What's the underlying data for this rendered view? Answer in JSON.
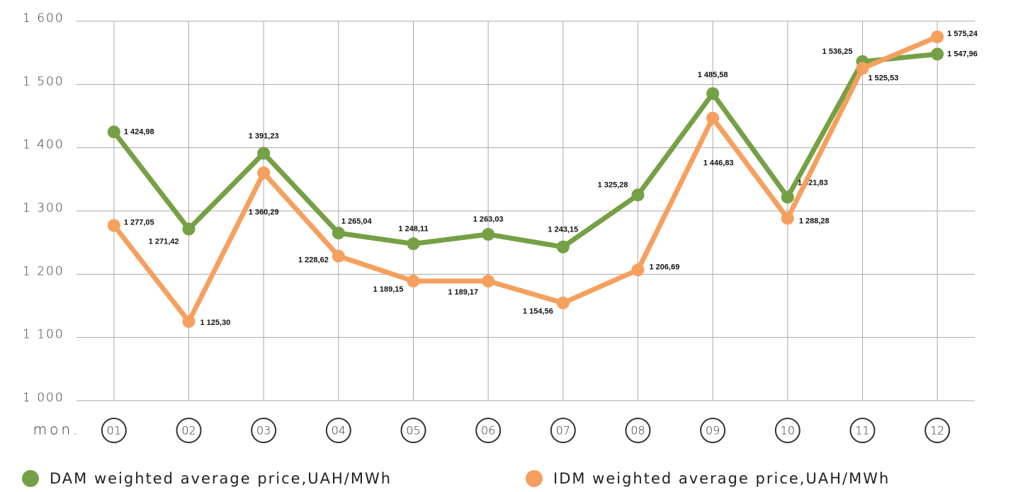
{
  "chart_data": {
    "type": "line",
    "x_label": "mon.",
    "categories": [
      "01",
      "02",
      "03",
      "04",
      "05",
      "06",
      "07",
      "08",
      "09",
      "10",
      "11",
      "12"
    ],
    "series": [
      {
        "name": "DAM weighted average price,UAH/MWh",
        "color": "#76a045",
        "values": [
          1424.98,
          1271.42,
          1391.23,
          1265.04,
          1248.11,
          1263.03,
          1243.15,
          1325.28,
          1485.58,
          1321.83,
          1536.25,
          1547.96
        ],
        "value_labels": [
          "1 424,98",
          "1 271,42",
          "1 391,23",
          "1 265,04",
          "1 248,11",
          "1 263,03",
          "1 243,15",
          "1 325,28",
          "1 485,58",
          "1 321,83",
          "1 536,25",
          "1 547,96"
        ]
      },
      {
        "name": "IDM weighted average price,UAH/MWh",
        "color": "#f5a05e",
        "values": [
          1277.05,
          1125.3,
          1360.29,
          1228.62,
          1189.15,
          1189.17,
          1154.56,
          1206.69,
          1446.83,
          1288.28,
          1525.53,
          1575.24
        ],
        "value_labels": [
          "1 277,05",
          "1 125,30",
          "1 360,29",
          "1 228,62",
          "1 189,15",
          "1 189,17",
          "1 154,56",
          "1 206,69",
          "1 446,83",
          "1 288,28",
          "1 525,53",
          "1 575,24"
        ]
      }
    ],
    "ylim": [
      1000,
      1600
    ],
    "yticks": [
      {
        "value": 1000,
        "label": "1 000"
      },
      {
        "value": 1100,
        "label": "1 100"
      },
      {
        "value": 1200,
        "label": "1 200"
      },
      {
        "value": 1300,
        "label": "1 300"
      },
      {
        "value": 1400,
        "label": "1 400"
      },
      {
        "value": 1500,
        "label": "1 500"
      },
      {
        "value": 1600,
        "label": "1 600"
      }
    ],
    "grid": true,
    "legend": "bottom"
  }
}
